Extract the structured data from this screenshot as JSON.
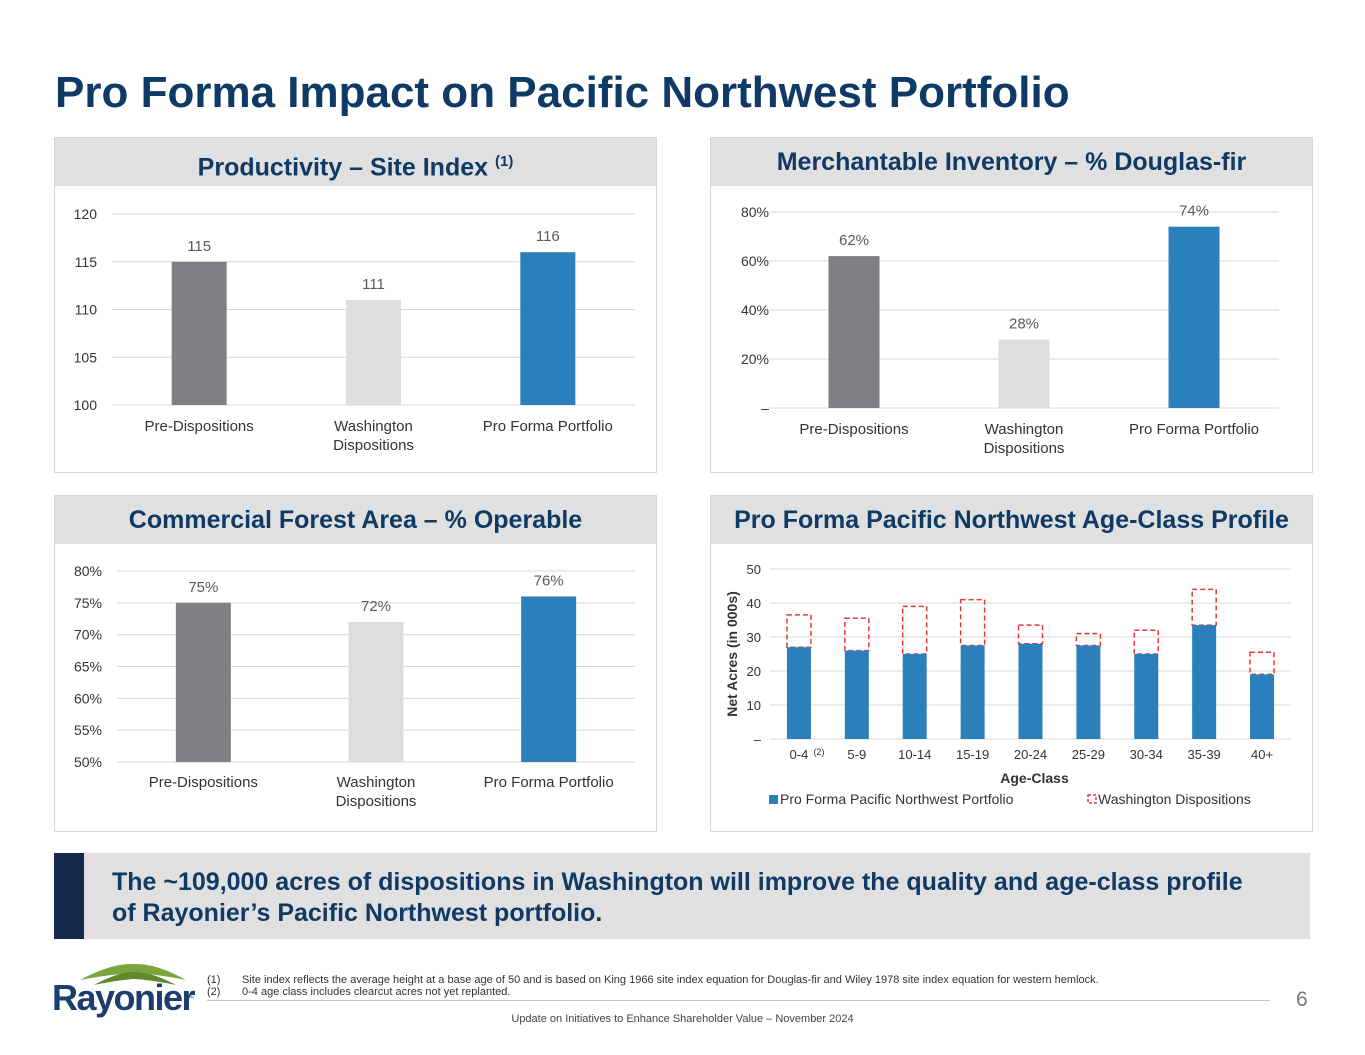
{
  "title": "Pro Forma Impact on Pacific Northwest Portfolio",
  "colors": {
    "pre": "#7f7f84",
    "wash": "#dedede",
    "proforma": "#2b7fbb",
    "title": "#0f3a66",
    "dashed": "#e53a3a"
  },
  "chart_data": [
    {
      "type": "bar",
      "title": "Productivity – Site Index",
      "title_sup": "(1)",
      "categories": [
        "Pre-Dispositions",
        "Washington Dispositions",
        "Pro Forma Portfolio"
      ],
      "category_lines": [
        [
          "Pre-Dispositions"
        ],
        [
          "Washington",
          "Dispositions"
        ],
        [
          "Pro Forma Portfolio"
        ]
      ],
      "values": [
        115,
        111,
        116
      ],
      "data_labels": [
        "115",
        "111",
        "116"
      ],
      "ylim": [
        100,
        120
      ],
      "yticks": [
        100,
        105,
        110,
        115,
        120
      ],
      "ytick_labels": [
        "100",
        "105",
        "110",
        "115",
        "120"
      ],
      "grid": true
    },
    {
      "type": "bar",
      "title": "Merchantable Inventory – % Douglas-fir",
      "categories": [
        "Pre-Dispositions",
        "Washington Dispositions",
        "Pro Forma Portfolio"
      ],
      "category_lines": [
        [
          "Pre-Dispositions"
        ],
        [
          "Washington",
          "Dispositions"
        ],
        [
          "Pro Forma Portfolio"
        ]
      ],
      "values": [
        62,
        28,
        74
      ],
      "data_labels": [
        "62%",
        "28%",
        "74%"
      ],
      "ylim": [
        0,
        80
      ],
      "yticks": [
        0,
        20,
        40,
        60,
        80
      ],
      "ytick_labels": [
        "–",
        "20%",
        "40%",
        "60%",
        "80%"
      ],
      "grid": true
    },
    {
      "type": "bar",
      "title": "Commercial Forest Area – % Operable",
      "categories": [
        "Pre-Dispositions",
        "Washington Dispositions",
        "Pro Forma Portfolio"
      ],
      "category_lines": [
        [
          "Pre-Dispositions"
        ],
        [
          "Washington",
          "Dispositions"
        ],
        [
          "Pro Forma Portfolio"
        ]
      ],
      "values": [
        75,
        72,
        76
      ],
      "data_labels": [
        "75%",
        "72%",
        "76%"
      ],
      "ylim": [
        50,
        80
      ],
      "yticks": [
        50,
        55,
        60,
        65,
        70,
        75,
        80
      ],
      "ytick_labels": [
        "50%",
        "55%",
        "60%",
        "65%",
        "70%",
        "75%",
        "80%"
      ],
      "grid": true
    },
    {
      "type": "bar",
      "stacked": true,
      "title": "Pro Forma Pacific Northwest Age-Class Profile",
      "xlabel": "Age-Class",
      "ylabel": "Net Acres (in 000s)",
      "categories": [
        "0-4",
        "5-9",
        "10-14",
        "15-19",
        "20-24",
        "25-29",
        "30-34",
        "35-39",
        "40+"
      ],
      "category_note": "(2)",
      "ylim": [
        0,
        50
      ],
      "yticks": [
        0,
        10,
        20,
        30,
        40,
        50
      ],
      "ytick_labels": [
        "–",
        "10",
        "20",
        "30",
        "40",
        "50"
      ],
      "series": [
        {
          "name": "Pro Forma Pacific Northwest Portfolio",
          "values": [
            27,
            26,
            25,
            27.5,
            28,
            27.5,
            25,
            33.5,
            19
          ]
        },
        {
          "name": "Washington Dispositions",
          "values": [
            9.5,
            9.5,
            14,
            13.5,
            5.5,
            3.5,
            7,
            10.5,
            6.5
          ]
        }
      ],
      "legend": "bottom",
      "grid": true
    }
  ],
  "callout": "The ~109,000 acres of dispositions in Washington will improve the quality and age-class profile of Rayonier’s Pacific Northwest portfolio.",
  "logo_text": "Rayonier",
  "logo_tm": "™",
  "footnotes": [
    {
      "num": "(1)",
      "text": "Site index reflects the average height at a base age of 50 and is based on King 1966 site index equation for Douglas-fir and Wiley 1978 site index equation for western hemlock."
    },
    {
      "num": "(2)",
      "text": "0-4 age class includes clearcut acres not yet replanted."
    }
  ],
  "page_number": "6",
  "footer": "Update on Initiatives to Enhance Shareholder Value – November 2024"
}
